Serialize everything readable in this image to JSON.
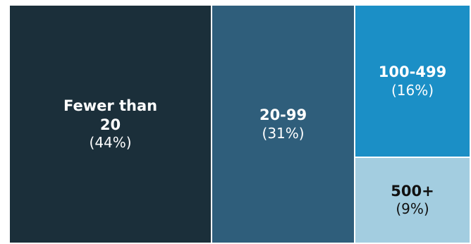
{
  "chart_data": {
    "type": "treemap",
    "title": "",
    "unit": "%",
    "tiles": [
      {
        "label": "Fewer than 20",
        "value": 44,
        "value_label": "(44%)",
        "color": "#1b2f3a",
        "text_color": "#ffffff"
      },
      {
        "label": "20-99",
        "value": 31,
        "value_label": "(31%)",
        "color": "#2f5e7b",
        "text_color": "#ffffff"
      },
      {
        "label": "100-499",
        "value": 16,
        "value_label": "(16%)",
        "color": "#1b8fc6",
        "text_color": "#ffffff"
      },
      {
        "label": "500+",
        "value": 9,
        "value_label": "(9%)",
        "color": "#a3cde0",
        "text_color": "#111111"
      }
    ]
  }
}
